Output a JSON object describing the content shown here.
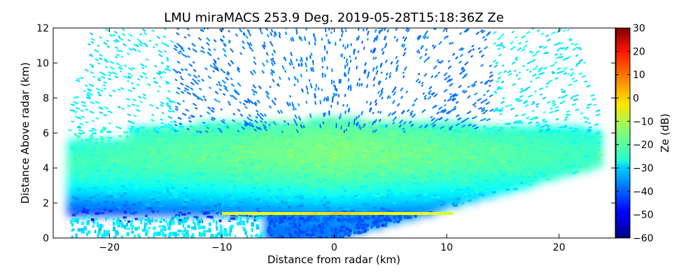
{
  "chart_data": {
    "type": "heatmap",
    "title": "LMU miraMACS 253.9 Deg. 2019-05-28T15:18:36Z  Ze",
    "xlabel": "Distance from radar (km)",
    "ylabel": "Distance Above radar  (km)",
    "xlim": [
      -25,
      25
    ],
    "ylim": [
      0,
      12
    ],
    "x_ticks": [
      -20,
      -10,
      0,
      10,
      20
    ],
    "x_tick_labels": [
      "−20",
      "−10",
      "0",
      "10",
      "20"
    ],
    "y_ticks": [
      0,
      2,
      4,
      6,
      8,
      10,
      12
    ],
    "y_tick_labels": [
      "0",
      "2",
      "4",
      "6",
      "8",
      "10",
      "12"
    ],
    "colorbar": {
      "label": "Ze (dB)",
      "range": [
        -60,
        30
      ],
      "ticks": [
        30,
        20,
        10,
        0,
        -10,
        -20,
        -30,
        -40,
        -50,
        -60
      ],
      "tick_labels": [
        "30",
        "20",
        "10",
        "0",
        "−10",
        "−20",
        "−30",
        "−40",
        "−50",
        "−60"
      ],
      "colormap": "jet"
    },
    "scan_azimuth_deg": 253.9,
    "timestamp": "2019-05-28T15:18:36Z",
    "field": "Ze",
    "features": {
      "cloud_layer_km": [
        1.4,
        6.8
      ],
      "bright_band_height_km": 1.4,
      "bright_band_Ze_dB": 0,
      "cloud_core_Ze_dB": -15,
      "cloud_edge_Ze_dB": -28,
      "sparse_echo_Ze_dB": -32,
      "near_radar_Ze_dB": -40
    },
    "grid": false
  }
}
